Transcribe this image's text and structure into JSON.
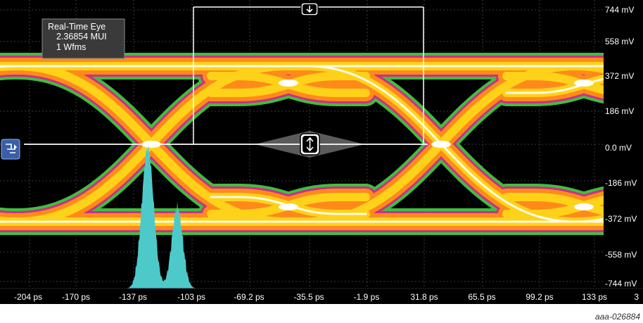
{
  "info_box": {
    "title": "Real-Time Eye",
    "line1": "2.36854 MUI",
    "line2": "1 Wfms"
  },
  "y_axis": {
    "ticks": [
      "744 mV",
      "558 mV",
      "372 mV",
      "186 mV",
      "0.0 mV",
      "-186 mV",
      "-372 mV",
      "-558 mV",
      "-744 mV"
    ]
  },
  "x_axis": {
    "ticks": [
      "-204 ps",
      "-170 ps",
      "-137 ps",
      "-103 ps",
      "-69.2 ps",
      "-35.5 ps",
      "-1.9 ps",
      "31.8 ps",
      "65.5 ps",
      "99.2 ps",
      "133 ps",
      "3"
    ]
  },
  "caption": "aaa-026884",
  "colors": {
    "background": "#000000",
    "eye_outer": "#3fbf3f",
    "eye_mid": "#c8308a",
    "eye_orange": "#ff8a1a",
    "eye_yellow": "#ffd21a",
    "eye_core": "#ffffff",
    "histogram": "#4ec9c9",
    "cursor": "#ffffff",
    "marker": "#3a5fa8"
  },
  "icons": {
    "top_marker": "arrow-down-icon",
    "center_marker": "arrow-up-down-icon",
    "left_marker": "channel-marker-icon"
  }
}
